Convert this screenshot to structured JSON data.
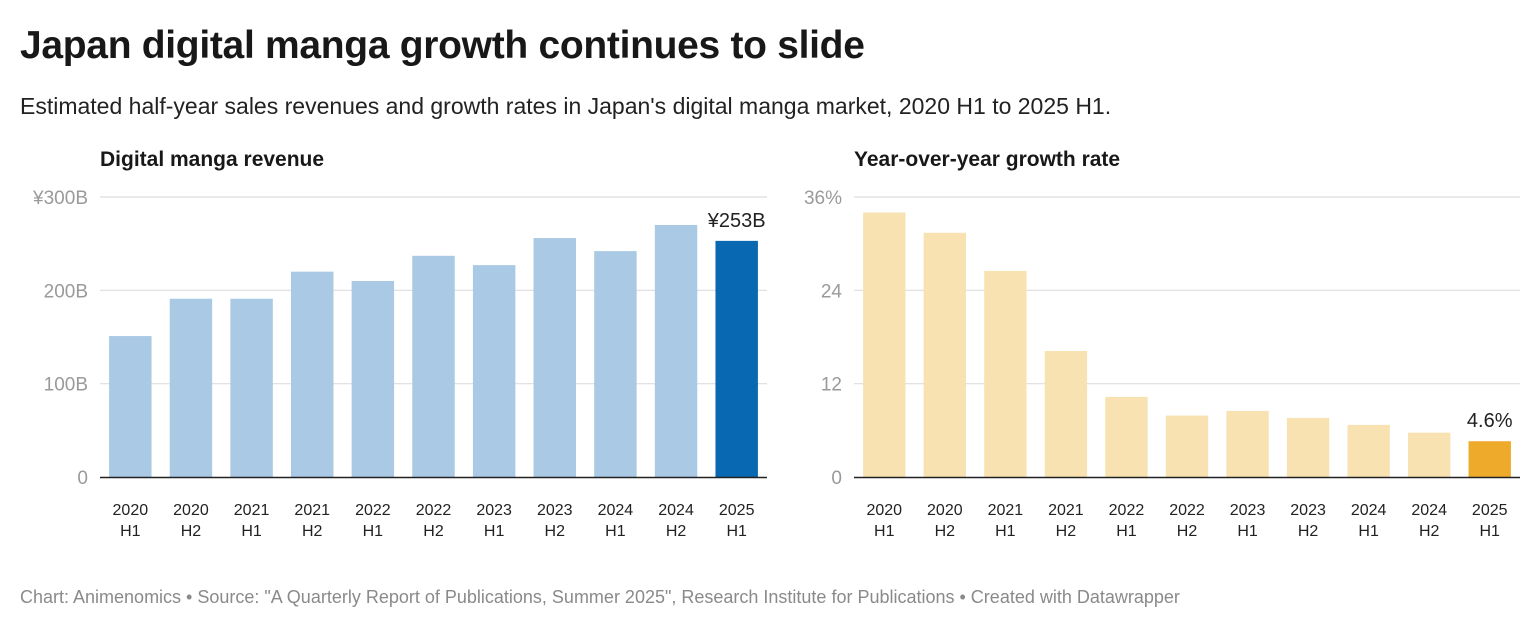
{
  "header": {
    "title": "Japan digital manga growth continues to slide",
    "subtitle": "Estimated half-year sales revenues and growth rates in Japan's digital manga market, 2020 H1 to 2025 H1."
  },
  "footer": {
    "text": "Chart: Animenomics • Source: \"A Quarterly Report of Publications, Summer 2025\", Research Institute for Publications • Created with Datawrapper"
  },
  "chart_data": [
    {
      "type": "bar",
      "title": "Digital manga revenue",
      "categories": [
        [
          "2020",
          "H1"
        ],
        [
          "2020",
          "H2"
        ],
        [
          "2021",
          "H1"
        ],
        [
          "2021",
          "H2"
        ],
        [
          "2022",
          "H1"
        ],
        [
          "2022",
          "H2"
        ],
        [
          "2023",
          "H1"
        ],
        [
          "2023",
          "H2"
        ],
        [
          "2024",
          "H1"
        ],
        [
          "2024",
          "H2"
        ],
        [
          "2025",
          "H1"
        ]
      ],
      "values": [
        151,
        191,
        191,
        220,
        210,
        237,
        227,
        256,
        242,
        270,
        253
      ],
      "unit": "billion yen",
      "ylim": [
        0,
        300
      ],
      "yticks": [
        {
          "value": 0,
          "label": "0"
        },
        {
          "value": 100,
          "label": "100B"
        },
        {
          "value": 200,
          "label": "200B"
        },
        {
          "value": 300,
          "label": "¥300B"
        }
      ],
      "grid": true,
      "base_color": "#a9c9e4",
      "highlight_color": "#0868b2",
      "highlight_index": 10,
      "annotation": {
        "index": 10,
        "text": "¥253B"
      }
    },
    {
      "type": "bar",
      "title": "Year-over-year growth rate",
      "categories": [
        [
          "2020",
          "H1"
        ],
        [
          "2020",
          "H2"
        ],
        [
          "2021",
          "H1"
        ],
        [
          "2021",
          "H2"
        ],
        [
          "2022",
          "H1"
        ],
        [
          "2022",
          "H2"
        ],
        [
          "2023",
          "H1"
        ],
        [
          "2023",
          "H2"
        ],
        [
          "2024",
          "H1"
        ],
        [
          "2024",
          "H2"
        ],
        [
          "2025",
          "H1"
        ]
      ],
      "values": [
        34.0,
        31.4,
        26.5,
        16.2,
        10.3,
        7.9,
        8.5,
        7.6,
        6.7,
        5.7,
        4.6
      ],
      "unit": "percent",
      "ylim": [
        0,
        36
      ],
      "yticks": [
        {
          "value": 0,
          "label": "0"
        },
        {
          "value": 12,
          "label": "12"
        },
        {
          "value": 24,
          "label": "24"
        },
        {
          "value": 36,
          "label": "36%"
        }
      ],
      "grid": true,
      "base_color": "#f8e2b2",
      "highlight_color": "#eeaa2a",
      "highlight_index": 10,
      "annotation": {
        "index": 10,
        "text": "4.6%"
      }
    }
  ]
}
